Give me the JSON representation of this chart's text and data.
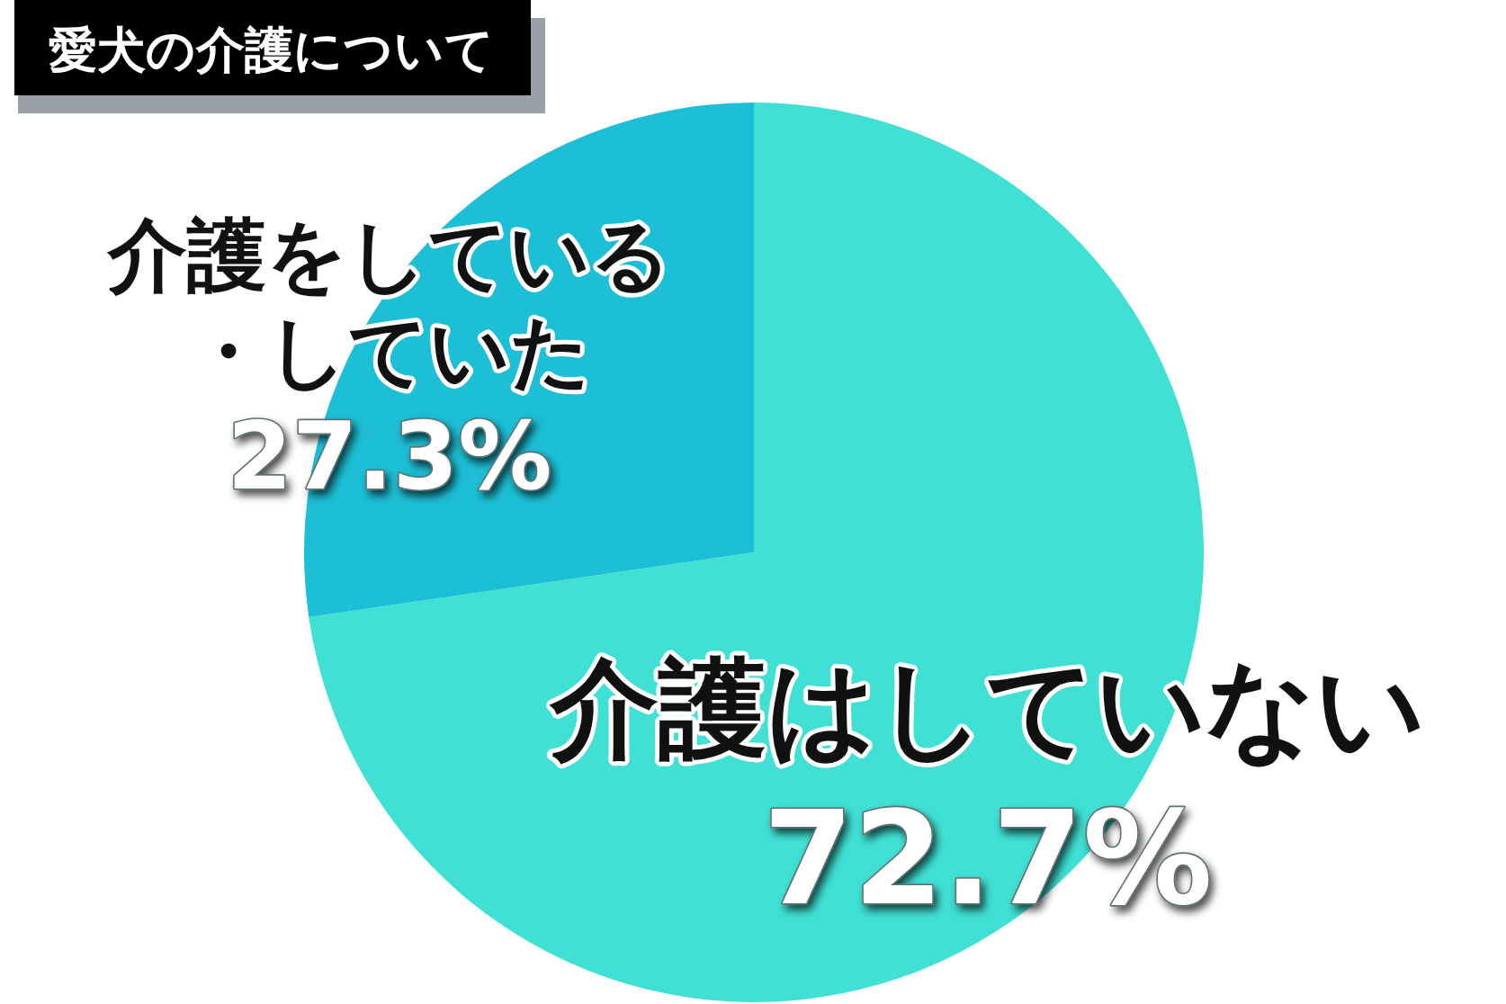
{
  "chart_data": {
    "type": "pie",
    "title": "愛犬の介護について",
    "categories": [
      "介護はしていない",
      "介護をしている・していた"
    ],
    "values": [
      72.7,
      27.3
    ],
    "colors": [
      "#40e0d4",
      "#1cbfd6"
    ],
    "value_labels": [
      "72.7%",
      "27.3%"
    ]
  }
}
